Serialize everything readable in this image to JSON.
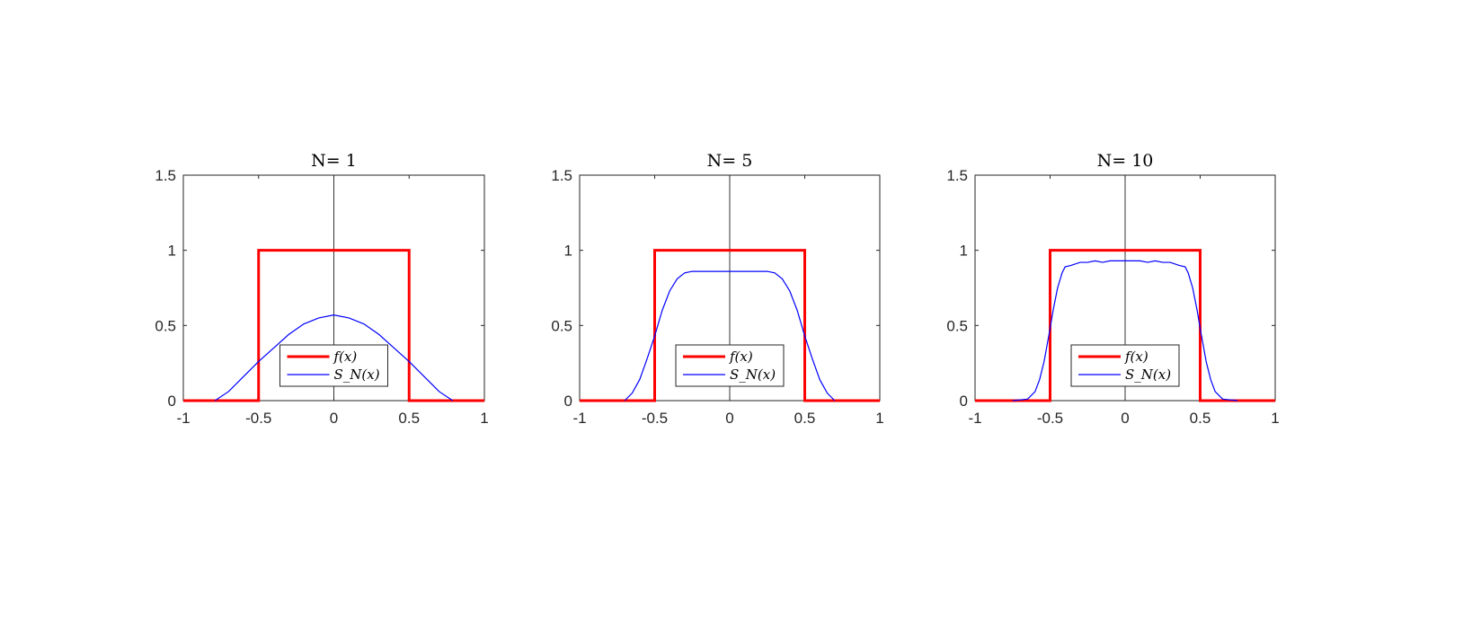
{
  "chart_data": [
    {
      "type": "line",
      "title": "N= 1",
      "N": 1,
      "xlabel": "",
      "ylabel": "",
      "xlim": [
        -1,
        1
      ],
      "ylim": [
        0,
        1.5
      ],
      "xticks": [
        "-1",
        "-0.5",
        "0",
        "0.5",
        "1"
      ],
      "yticks": [
        "0",
        "0.5",
        "1",
        "1.5"
      ],
      "grid": false,
      "legend": {
        "position": "bottom-center",
        "entries": [
          "f(x)",
          "S_N(x)"
        ]
      },
      "series": [
        {
          "name": "f(x)",
          "color": "#ff0000",
          "x": [
            -1,
            -0.5,
            -0.5,
            0.5,
            0.5,
            1
          ],
          "y": [
            0,
            0,
            1,
            1,
            0,
            0
          ]
        },
        {
          "name": "S_N(x)",
          "color": "#0000ff",
          "x": [
            -0.79,
            -0.7,
            -0.6,
            -0.5,
            -0.4,
            -0.3,
            -0.2,
            -0.1,
            0,
            0.1,
            0.2,
            0.3,
            0.4,
            0.5,
            0.6,
            0.7,
            0.79
          ],
          "y": [
            0,
            0.06,
            0.16,
            0.26,
            0.35,
            0.44,
            0.51,
            0.55,
            0.57,
            0.55,
            0.51,
            0.44,
            0.35,
            0.26,
            0.16,
            0.06,
            0
          ]
        }
      ]
    },
    {
      "type": "line",
      "title": "N= 5",
      "N": 5,
      "xlabel": "",
      "ylabel": "",
      "xlim": [
        -1,
        1
      ],
      "ylim": [
        0,
        1.5
      ],
      "xticks": [
        "-1",
        "-0.5",
        "0",
        "0.5",
        "1"
      ],
      "yticks": [
        "0",
        "0.5",
        "1",
        "1.5"
      ],
      "grid": false,
      "legend": {
        "position": "bottom-center",
        "entries": [
          "f(x)",
          "S_N(x)"
        ]
      },
      "series": [
        {
          "name": "f(x)",
          "color": "#ff0000",
          "x": [
            -1,
            -0.5,
            -0.5,
            0.5,
            0.5,
            1
          ],
          "y": [
            0,
            0,
            1,
            1,
            0,
            0
          ]
        },
        {
          "name": "S_N(x)",
          "color": "#0000ff",
          "x": [
            -0.7,
            -0.65,
            -0.6,
            -0.55,
            -0.5,
            -0.45,
            -0.4,
            -0.35,
            -0.3,
            -0.25,
            -0.2,
            -0.1,
            0,
            0.1,
            0.2,
            0.25,
            0.3,
            0.35,
            0.4,
            0.45,
            0.5,
            0.55,
            0.6,
            0.65,
            0.7
          ],
          "y": [
            0,
            0.05,
            0.14,
            0.28,
            0.43,
            0.6,
            0.73,
            0.81,
            0.85,
            0.86,
            0.86,
            0.86,
            0.86,
            0.86,
            0.86,
            0.86,
            0.85,
            0.81,
            0.73,
            0.6,
            0.43,
            0.28,
            0.14,
            0.05,
            0
          ]
        }
      ]
    },
    {
      "type": "line",
      "title": "N= 10",
      "N": 10,
      "xlabel": "",
      "ylabel": "",
      "xlim": [
        -1,
        1
      ],
      "ylim": [
        0,
        1.5
      ],
      "xticks": [
        "-1",
        "-0.5",
        "0",
        "0.5",
        "1"
      ],
      "yticks": [
        "0",
        "0.5",
        "1",
        "1.5"
      ],
      "grid": false,
      "legend": {
        "position": "bottom-center",
        "entries": [
          "f(x)",
          "S_N(x)"
        ]
      },
      "series": [
        {
          "name": "f(x)",
          "color": "#ff0000",
          "x": [
            -1,
            -0.5,
            -0.5,
            0.5,
            0.5,
            1
          ],
          "y": [
            0,
            0,
            1,
            1,
            0,
            0
          ]
        },
        {
          "name": "S_N(x)",
          "color": "#0000ff",
          "x": [
            -0.75,
            -0.65,
            -0.6,
            -0.57,
            -0.54,
            -0.52,
            -0.5,
            -0.48,
            -0.45,
            -0.42,
            -0.4,
            -0.36,
            -0.3,
            -0.25,
            -0.2,
            -0.15,
            -0.1,
            -0.05,
            0,
            0.05,
            0.1,
            0.15,
            0.2,
            0.25,
            0.3,
            0.36,
            0.4,
            0.42,
            0.45,
            0.48,
            0.5,
            0.52,
            0.54,
            0.57,
            0.6,
            0.65,
            0.75
          ],
          "y": [
            0,
            0.01,
            0.06,
            0.14,
            0.26,
            0.37,
            0.48,
            0.6,
            0.75,
            0.85,
            0.89,
            0.9,
            0.92,
            0.92,
            0.93,
            0.92,
            0.93,
            0.93,
            0.93,
            0.93,
            0.93,
            0.92,
            0.93,
            0.92,
            0.92,
            0.9,
            0.89,
            0.85,
            0.75,
            0.6,
            0.48,
            0.37,
            0.26,
            0.14,
            0.06,
            0.01,
            0
          ]
        }
      ]
    }
  ]
}
